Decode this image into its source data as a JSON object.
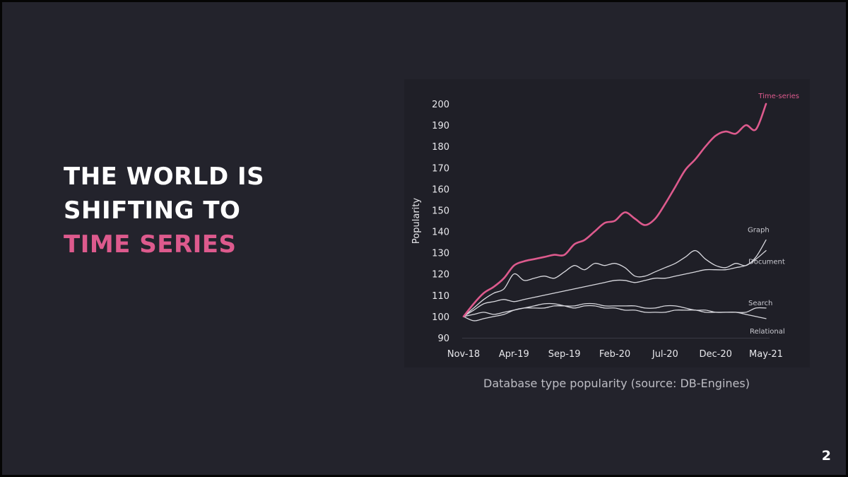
{
  "slide": {
    "headline_line1": "THE WORLD IS",
    "headline_line2": "SHIFTING TO",
    "headline_line3": "TIME SERIES",
    "caption": "Database type popularity (source: DB-Engines)",
    "page_number": "2",
    "accent_color": "#dd5a8d",
    "background_color": "#23232c"
  },
  "chart_data": {
    "type": "line",
    "ylabel": "Popularity",
    "xlabel": "",
    "ylim": [
      90,
      200
    ],
    "yticks": [
      90,
      100,
      110,
      120,
      130,
      140,
      150,
      160,
      170,
      180,
      190,
      200
    ],
    "xticks": [
      "Nov-18",
      "Apr-19",
      "Sep-19",
      "Feb-20",
      "Jul-20",
      "Dec-20",
      "May-21"
    ],
    "xlim": [
      0,
      30
    ],
    "x": [
      0,
      1,
      2,
      3,
      4,
      5,
      6,
      7,
      8,
      9,
      10,
      11,
      12,
      13,
      14,
      15,
      16,
      17,
      18,
      19,
      20,
      21,
      22,
      23,
      24,
      25,
      26,
      27,
      28,
      29,
      30
    ],
    "series": [
      {
        "name": "Time-series",
        "color": "#dd5a8d",
        "values": [
          100,
          106,
          111,
          114,
          118,
          124,
          126,
          127,
          128,
          129,
          129,
          134,
          136,
          140,
          144,
          145,
          149,
          146,
          143,
          146,
          153,
          161,
          169,
          174,
          180,
          185,
          187,
          186,
          190,
          188,
          200
        ]
      },
      {
        "name": "Graph",
        "color": "#d8d8de",
        "values": [
          100,
          104,
          108,
          111,
          113,
          120,
          117,
          118,
          119,
          118,
          121,
          124,
          122,
          125,
          124,
          125,
          123,
          119,
          119,
          121,
          123,
          125,
          128,
          131,
          127,
          124,
          123,
          125,
          124,
          128,
          136
        ]
      },
      {
        "name": "Document",
        "color": "#d8d8de",
        "values": [
          100,
          103,
          106,
          107,
          108,
          107,
          108,
          109,
          110,
          111,
          112,
          113,
          114,
          115,
          116,
          117,
          117,
          116,
          117,
          118,
          118,
          119,
          120,
          121,
          122,
          122,
          122,
          123,
          124,
          127,
          131
        ]
      },
      {
        "name": "Search",
        "color": "#d8d8de",
        "values": [
          100,
          98,
          99,
          100,
          101,
          103,
          104,
          104,
          104,
          105,
          105,
          105,
          106,
          106,
          105,
          105,
          105,
          105,
          104,
          104,
          105,
          105,
          104,
          103,
          103,
          102,
          102,
          102,
          102,
          104,
          104
        ]
      },
      {
        "name": "Relational",
        "color": "#d8d8de",
        "values": [
          100,
          101,
          102,
          101,
          102,
          103,
          104,
          105,
          106,
          106,
          105,
          104,
          105,
          105,
          104,
          104,
          103,
          103,
          102,
          102,
          102,
          103,
          103,
          103,
          102,
          102,
          102,
          102,
          101,
          100,
          99
        ]
      }
    ]
  }
}
